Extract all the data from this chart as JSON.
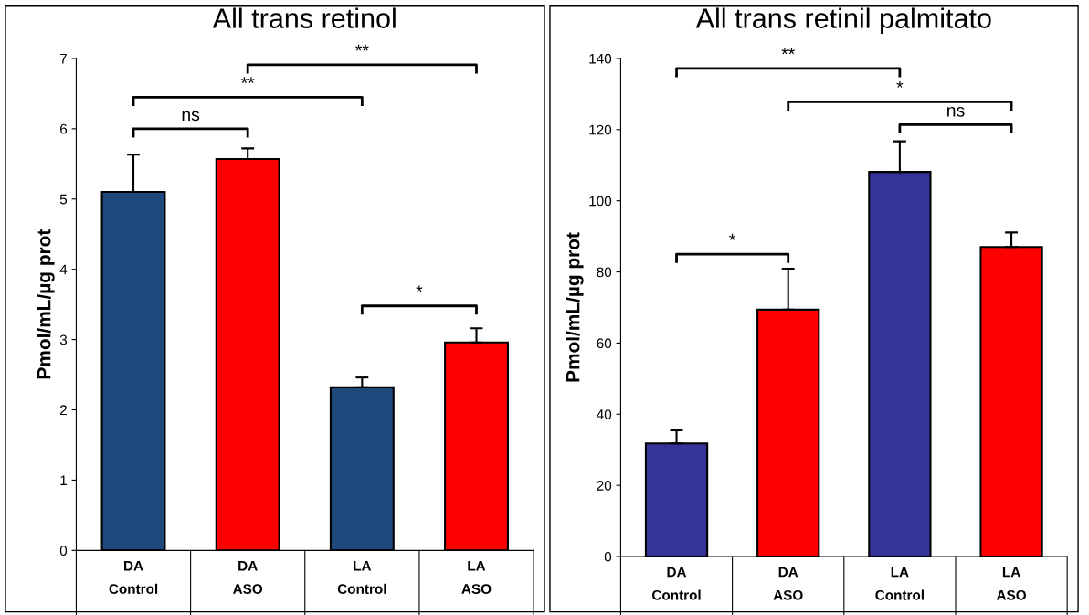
{
  "chart_data": [
    {
      "type": "bar",
      "title": "All trans retinol",
      "ylabel": "Pmol/mL/µg prot",
      "categories": [
        "DA\nControl",
        "DA\nASO",
        "LA\nControl",
        "LA\nASO"
      ],
      "values": [
        5.1,
        5.57,
        2.32,
        2.96
      ],
      "colors": [
        "#1f497d",
        "#ff0000",
        "#1f497d",
        "#ff0000"
      ],
      "errors": [
        [
          5.1,
          5.63
        ],
        [
          5.57,
          5.72
        ],
        [
          2.32,
          2.46
        ],
        [
          2.96,
          3.16
        ]
      ],
      "ylim": [
        0,
        7
      ],
      "yticks": [
        0,
        1,
        2,
        3,
        4,
        5,
        6,
        7
      ],
      "annotations": [
        "ns",
        "**",
        "**",
        "*"
      ]
    },
    {
      "type": "bar",
      "title": "All trans retinil palmitato",
      "ylabel": "Pmol/mL/µg prot",
      "categories": [
        "DA\nControl",
        "DA\nASO",
        "LA\nControl",
        "LA\nASO"
      ],
      "values": [
        31.8,
        69.4,
        108.1,
        87.0
      ],
      "colors": [
        "#333399",
        "#ff0000",
        "#333399",
        "#ff0000"
      ],
      "errors": [
        [
          31.8,
          35.5
        ],
        [
          69.4,
          80.9
        ],
        [
          108.1,
          116.7
        ],
        [
          87.0,
          91.1
        ]
      ],
      "ylim": [
        0,
        140
      ],
      "yticks": [
        0,
        20,
        40,
        60,
        80,
        100,
        120,
        140
      ],
      "annotations": [
        "**",
        "*",
        "ns",
        "*"
      ]
    }
  ]
}
